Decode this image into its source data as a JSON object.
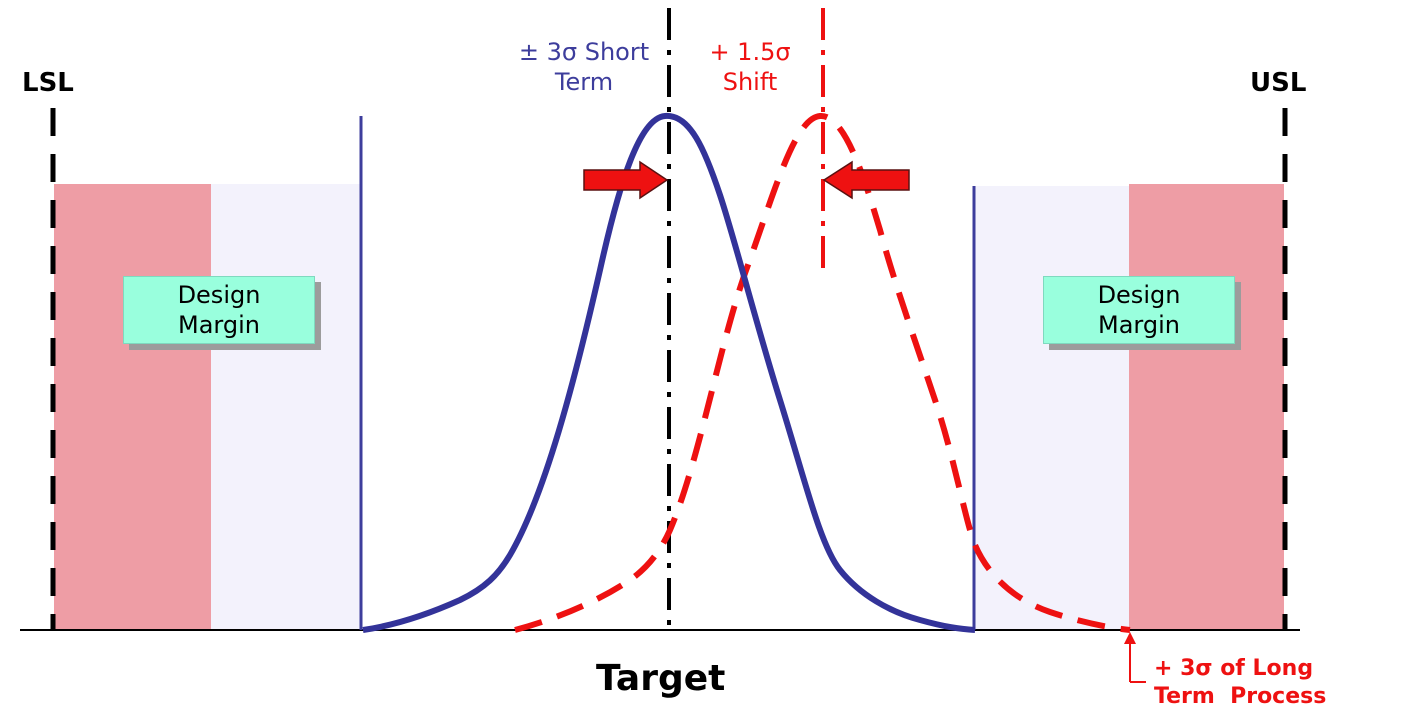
{
  "labels": {
    "lsl": "LSL",
    "usl": "USL",
    "short_term_line1": "± 3σ Short",
    "short_term_line2": "Term",
    "shift_line1": "+ 1.5σ",
    "shift_line2": "Shift",
    "target": "Target",
    "long_term_line1": "+ 3σ of Long",
    "long_term_line2": "Term  Process"
  },
  "design_margin": {
    "line1": "Design",
    "line2": "Margin"
  },
  "colors": {
    "short_term_curve": "#3d3d9c",
    "shifted_curve": "#ee1111",
    "outer_zone": "#ee9da5",
    "inner_zone": "#f3f2fc",
    "margin_box": "#99ffdd",
    "arrow": "#ee1111"
  }
}
